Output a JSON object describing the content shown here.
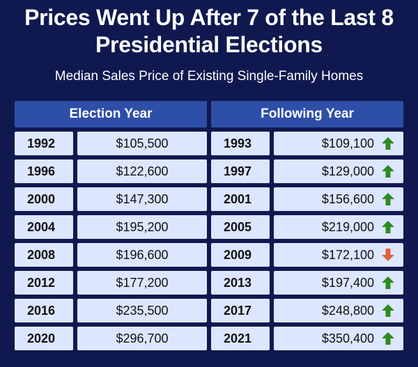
{
  "header": {
    "title_line1": "Prices Went Up After 7 of the Last 8",
    "title_line2": "Presidential Elections",
    "subtitle": "Median Sales Price of Existing Single-Family Homes"
  },
  "table": {
    "col_headers": [
      "Election Year",
      "Following Year"
    ],
    "rows": [
      {
        "election_year": "1992",
        "election_price": "$105,500",
        "following_year": "1993",
        "following_price": "$109,100",
        "direction": "up"
      },
      {
        "election_year": "1996",
        "election_price": "$122,600",
        "following_year": "1997",
        "following_price": "$129,000",
        "direction": "up"
      },
      {
        "election_year": "2000",
        "election_price": "$147,300",
        "following_year": "2001",
        "following_price": "$156,600",
        "direction": "up"
      },
      {
        "election_year": "2004",
        "election_price": "$195,200",
        "following_year": "2005",
        "following_price": "$219,000",
        "direction": "up"
      },
      {
        "election_year": "2008",
        "election_price": "$196,600",
        "following_year": "2009",
        "following_price": "$172,100",
        "direction": "down"
      },
      {
        "election_year": "2012",
        "election_price": "$177,200",
        "following_year": "2013",
        "following_price": "$197,400",
        "direction": "up"
      },
      {
        "election_year": "2016",
        "election_price": "$235,500",
        "following_year": "2017",
        "following_price": "$248,800",
        "direction": "up"
      },
      {
        "election_year": "2020",
        "election_price": "$296,700",
        "following_year": "2021",
        "following_price": "$350,400",
        "direction": "up"
      }
    ]
  },
  "colors": {
    "background": "#10194f",
    "header_cell": "#2e4fa8",
    "cell": "#dde6ff",
    "up_arrow": "#2e8b1e",
    "down_arrow": "#e0623f"
  },
  "icons": {
    "up": "arrow-up-icon",
    "down": "arrow-down-icon"
  },
  "chart_data": {
    "type": "table",
    "title": "Prices Went Up After 7 of the Last 8 Presidential Elections",
    "subtitle": "Median Sales Price of Existing Single-Family Homes",
    "columns": [
      "Election Year",
      "Following Year"
    ],
    "election_years": [
      1992,
      1996,
      2000,
      2004,
      2008,
      2012,
      2016,
      2020
    ],
    "election_prices": [
      105500,
      122600,
      147300,
      195200,
      196600,
      177200,
      235500,
      296700
    ],
    "following_years": [
      1993,
      1997,
      2001,
      2005,
      2009,
      2013,
      2017,
      2021
    ],
    "following_prices": [
      109100,
      129000,
      156600,
      219000,
      172100,
      197400,
      248800,
      350400
    ],
    "directions": [
      "up",
      "up",
      "up",
      "up",
      "down",
      "up",
      "up",
      "up"
    ]
  }
}
